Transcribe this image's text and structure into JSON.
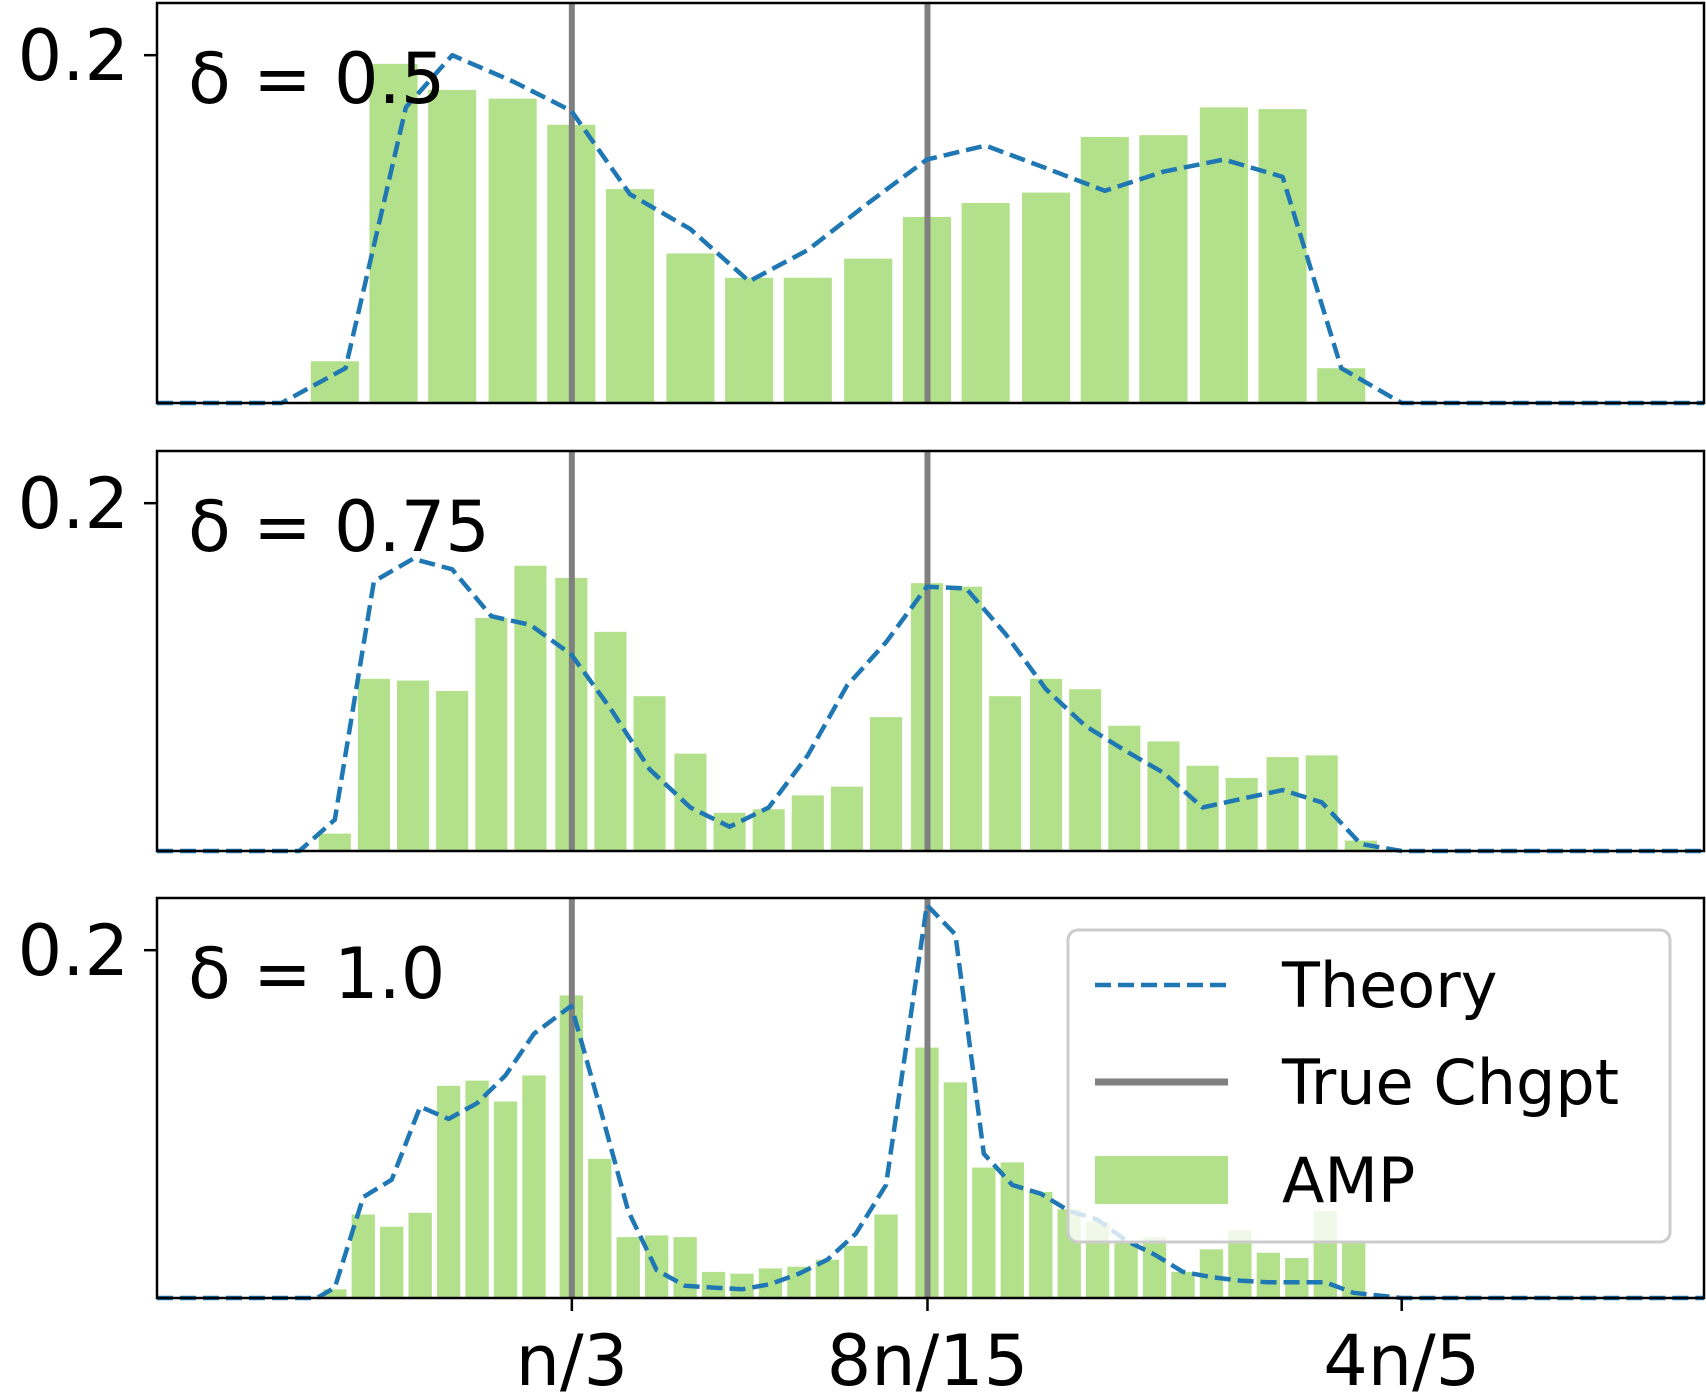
{
  "chart_data": {
    "type": "bar",
    "description_of_layout": "three stacked panels sharing x axis",
    "x_ticks": [
      {
        "label": "n/3",
        "value": 0.3333
      },
      {
        "label": "8n/15",
        "value": 0.5333
      },
      {
        "label": "4n/5",
        "value": 0.8
      }
    ],
    "xlim": [
      0.1,
      0.97
    ],
    "ylim": [
      0,
      0.23
    ],
    "y_ticks": [
      {
        "label": "0.2",
        "value": 0.2
      }
    ],
    "changepoints": [
      0.3333,
      0.5333
    ],
    "legend": {
      "position": "lower-right of bottom panel",
      "entries": [
        {
          "label": "Theory",
          "style": "dashed",
          "color": "#1f77b4"
        },
        {
          "label": "True Chgpt",
          "style": "solid",
          "color": "#808080"
        },
        {
          "label": "AMP",
          "style": "bar",
          "color": "#b3e08a"
        }
      ]
    },
    "panels": [
      {
        "label": "δ = 0.5",
        "amp_bars": [
          {
            "x": 0.2,
            "y": 0.024
          },
          {
            "x": 0.233,
            "y": 0.195
          },
          {
            "x": 0.266,
            "y": 0.18
          },
          {
            "x": 0.3,
            "y": 0.175
          },
          {
            "x": 0.333,
            "y": 0.16
          },
          {
            "x": 0.366,
            "y": 0.123
          },
          {
            "x": 0.4,
            "y": 0.086
          },
          {
            "x": 0.433,
            "y": 0.072
          },
          {
            "x": 0.466,
            "y": 0.072
          },
          {
            "x": 0.5,
            "y": 0.083
          },
          {
            "x": 0.533,
            "y": 0.107
          },
          {
            "x": 0.566,
            "y": 0.115
          },
          {
            "x": 0.6,
            "y": 0.121
          },
          {
            "x": 0.633,
            "y": 0.153
          },
          {
            "x": 0.666,
            "y": 0.154
          },
          {
            "x": 0.7,
            "y": 0.17
          },
          {
            "x": 0.733,
            "y": 0.169
          },
          {
            "x": 0.766,
            "y": 0.02
          }
        ],
        "theory": [
          [
            0.1,
            0
          ],
          [
            0.17,
            0
          ],
          [
            0.206,
            0.02
          ],
          [
            0.24,
            0.17
          ],
          [
            0.266,
            0.2
          ],
          [
            0.3,
            0.185
          ],
          [
            0.333,
            0.168
          ],
          [
            0.366,
            0.12
          ],
          [
            0.4,
            0.1
          ],
          [
            0.433,
            0.07
          ],
          [
            0.466,
            0.088
          ],
          [
            0.5,
            0.115
          ],
          [
            0.533,
            0.14
          ],
          [
            0.566,
            0.148
          ],
          [
            0.6,
            0.135
          ],
          [
            0.633,
            0.122
          ],
          [
            0.666,
            0.133
          ],
          [
            0.7,
            0.14
          ],
          [
            0.733,
            0.13
          ],
          [
            0.766,
            0.02
          ],
          [
            0.8,
            0
          ],
          [
            0.97,
            0
          ]
        ]
      },
      {
        "label": "δ = 0.75",
        "amp_bars": [
          {
            "x": 0.2,
            "y": 0.01
          },
          {
            "x": 0.222,
            "y": 0.099
          },
          {
            "x": 0.244,
            "y": 0.098
          },
          {
            "x": 0.266,
            "y": 0.092
          },
          {
            "x": 0.288,
            "y": 0.134
          },
          {
            "x": 0.31,
            "y": 0.164
          },
          {
            "x": 0.333,
            "y": 0.157
          },
          {
            "x": 0.355,
            "y": 0.126
          },
          {
            "x": 0.377,
            "y": 0.089
          },
          {
            "x": 0.4,
            "y": 0.056
          },
          {
            "x": 0.422,
            "y": 0.022
          },
          {
            "x": 0.444,
            "y": 0.024
          },
          {
            "x": 0.466,
            "y": 0.032
          },
          {
            "x": 0.488,
            "y": 0.037
          },
          {
            "x": 0.51,
            "y": 0.077
          },
          {
            "x": 0.533,
            "y": 0.154
          },
          {
            "x": 0.555,
            "y": 0.152
          },
          {
            "x": 0.577,
            "y": 0.089
          },
          {
            "x": 0.6,
            "y": 0.099
          },
          {
            "x": 0.622,
            "y": 0.093
          },
          {
            "x": 0.644,
            "y": 0.072
          },
          {
            "x": 0.666,
            "y": 0.063
          },
          {
            "x": 0.688,
            "y": 0.049
          },
          {
            "x": 0.71,
            "y": 0.042
          },
          {
            "x": 0.733,
            "y": 0.054
          },
          {
            "x": 0.755,
            "y": 0.055
          },
          {
            "x": 0.777,
            "y": 0.006
          }
        ],
        "theory": [
          [
            0.1,
            0
          ],
          [
            0.18,
            0
          ],
          [
            0.2,
            0.018
          ],
          [
            0.222,
            0.155
          ],
          [
            0.244,
            0.168
          ],
          [
            0.266,
            0.162
          ],
          [
            0.288,
            0.135
          ],
          [
            0.31,
            0.13
          ],
          [
            0.333,
            0.113
          ],
          [
            0.355,
            0.082
          ],
          [
            0.377,
            0.047
          ],
          [
            0.4,
            0.025
          ],
          [
            0.422,
            0.014
          ],
          [
            0.444,
            0.025
          ],
          [
            0.466,
            0.055
          ],
          [
            0.488,
            0.095
          ],
          [
            0.51,
            0.12
          ],
          [
            0.533,
            0.152
          ],
          [
            0.555,
            0.151
          ],
          [
            0.577,
            0.125
          ],
          [
            0.6,
            0.093
          ],
          [
            0.622,
            0.072
          ],
          [
            0.644,
            0.058
          ],
          [
            0.666,
            0.045
          ],
          [
            0.688,
            0.025
          ],
          [
            0.71,
            0.03
          ],
          [
            0.733,
            0.035
          ],
          [
            0.755,
            0.028
          ],
          [
            0.777,
            0.004
          ],
          [
            0.8,
            0
          ],
          [
            0.97,
            0
          ]
        ]
      },
      {
        "label": "δ = 1.0",
        "amp_bars": [
          {
            "x": 0.2,
            "y": 0.005
          },
          {
            "x": 0.216,
            "y": 0.048
          },
          {
            "x": 0.232,
            "y": 0.041
          },
          {
            "x": 0.248,
            "y": 0.049
          },
          {
            "x": 0.264,
            "y": 0.122
          },
          {
            "x": 0.28,
            "y": 0.125
          },
          {
            "x": 0.296,
            "y": 0.113
          },
          {
            "x": 0.312,
            "y": 0.128
          },
          {
            "x": 0.333,
            "y": 0.174
          },
          {
            "x": 0.349,
            "y": 0.08
          },
          {
            "x": 0.365,
            "y": 0.035
          },
          {
            "x": 0.381,
            "y": 0.036
          },
          {
            "x": 0.397,
            "y": 0.035
          },
          {
            "x": 0.413,
            "y": 0.015
          },
          {
            "x": 0.429,
            "y": 0.014
          },
          {
            "x": 0.445,
            "y": 0.017
          },
          {
            "x": 0.461,
            "y": 0.018
          },
          {
            "x": 0.477,
            "y": 0.022
          },
          {
            "x": 0.493,
            "y": 0.03
          },
          {
            "x": 0.51,
            "y": 0.048
          },
          {
            "x": 0.533,
            "y": 0.144
          },
          {
            "x": 0.549,
            "y": 0.124
          },
          {
            "x": 0.565,
            "y": 0.075
          },
          {
            "x": 0.581,
            "y": 0.078
          },
          {
            "x": 0.597,
            "y": 0.061
          },
          {
            "x": 0.613,
            "y": 0.051
          },
          {
            "x": 0.629,
            "y": 0.044
          },
          {
            "x": 0.645,
            "y": 0.033
          },
          {
            "x": 0.661,
            "y": 0.035
          },
          {
            "x": 0.677,
            "y": 0.015
          },
          {
            "x": 0.693,
            "y": 0.028
          },
          {
            "x": 0.709,
            "y": 0.039
          },
          {
            "x": 0.725,
            "y": 0.026
          },
          {
            "x": 0.741,
            "y": 0.023
          },
          {
            "x": 0.757,
            "y": 0.05
          },
          {
            "x": 0.773,
            "y": 0.033
          }
        ],
        "theory": [
          [
            0.1,
            0
          ],
          [
            0.19,
            0
          ],
          [
            0.2,
            0.006
          ],
          [
            0.216,
            0.058
          ],
          [
            0.232,
            0.068
          ],
          [
            0.248,
            0.11
          ],
          [
            0.264,
            0.103
          ],
          [
            0.28,
            0.112
          ],
          [
            0.296,
            0.128
          ],
          [
            0.312,
            0.152
          ],
          [
            0.333,
            0.168
          ],
          [
            0.349,
            0.11
          ],
          [
            0.365,
            0.05
          ],
          [
            0.381,
            0.016
          ],
          [
            0.397,
            0.007
          ],
          [
            0.413,
            0.006
          ],
          [
            0.429,
            0.005
          ],
          [
            0.445,
            0.008
          ],
          [
            0.461,
            0.014
          ],
          [
            0.477,
            0.022
          ],
          [
            0.493,
            0.037
          ],
          [
            0.51,
            0.065
          ],
          [
            0.533,
            0.226
          ],
          [
            0.549,
            0.209
          ],
          [
            0.565,
            0.083
          ],
          [
            0.581,
            0.065
          ],
          [
            0.597,
            0.06
          ],
          [
            0.613,
            0.05
          ],
          [
            0.629,
            0.045
          ],
          [
            0.645,
            0.033
          ],
          [
            0.661,
            0.025
          ],
          [
            0.677,
            0.015
          ],
          [
            0.693,
            0.012
          ],
          [
            0.709,
            0.01
          ],
          [
            0.725,
            0.009
          ],
          [
            0.741,
            0.009
          ],
          [
            0.757,
            0.009
          ],
          [
            0.773,
            0.003
          ],
          [
            0.8,
            0
          ],
          [
            0.97,
            0
          ]
        ]
      }
    ]
  }
}
